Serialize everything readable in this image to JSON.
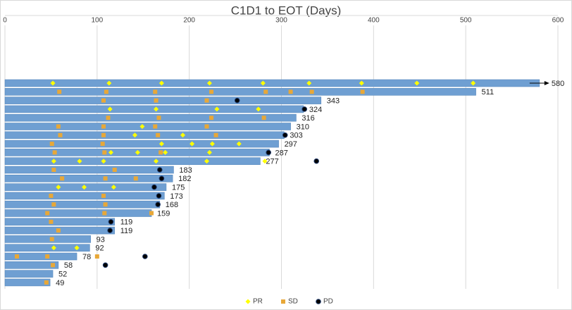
{
  "chart_data": {
    "type": "swimmer",
    "title": "C1D1 to EOT (Days)",
    "xlim": [
      0,
      600
    ],
    "xticks": [
      0,
      100,
      200,
      300,
      400,
      500,
      600
    ],
    "grid": true,
    "bar_color": "#6f9fd2",
    "values": [
      580,
      511,
      343,
      324,
      316,
      310,
      303,
      297,
      287,
      277,
      183,
      182,
      175,
      173,
      168,
      159,
      119,
      119,
      93,
      92,
      78,
      58,
      52,
      49
    ],
    "ongoing": [
      true,
      false,
      false,
      false,
      false,
      false,
      false,
      false,
      false,
      false,
      false,
      false,
      false,
      false,
      false,
      false,
      false,
      false,
      false,
      false,
      false,
      false,
      false,
      false
    ],
    "events": [
      {
        "name": "PR",
        "color": "#ffff00",
        "symbol": "diamond",
        "values": [
          [
            52,
            113,
            170,
            222,
            280,
            330,
            387,
            447,
            508
          ],
          [],
          [],
          [
            114,
            164,
            230,
            275
          ],
          [],
          [
            149
          ],
          [
            141,
            193
          ],
          [
            170,
            203,
            225,
            254
          ],
          [
            115,
            144,
            174,
            222
          ],
          [
            53,
            81,
            107,
            164,
            219,
            282
          ],
          [],
          [],
          [
            58,
            86,
            118
          ],
          [],
          [],
          [],
          [],
          [],
          [],
          [
            53,
            78
          ],
          [],
          [],
          [],
          []
        ]
      },
      {
        "name": "SD",
        "color": "#e8a838",
        "symbol": "square",
        "values": [
          [],
          [
            59,
            110,
            163,
            224,
            283,
            310,
            333,
            388
          ],
          [
            107,
            164,
            219
          ],
          [],
          [
            112,
            167,
            224,
            281
          ],
          [
            58,
            107,
            163,
            219
          ],
          [
            60,
            107,
            166,
            229
          ],
          [
            51,
            106
          ],
          [
            54,
            108,
            169
          ],
          [],
          [
            53,
            119
          ],
          [
            62,
            109,
            142
          ],
          [],
          [
            50,
            107
          ],
          [
            53,
            109
          ],
          [
            46,
            108,
            159
          ],
          [
            50
          ],
          [
            58
          ],
          [
            51
          ],
          [],
          [
            13,
            46,
            100
          ],
          [
            52
          ],
          [],
          [
            45
          ]
        ]
      },
      {
        "name": "PD",
        "color": "#000000",
        "symbol": "circle",
        "values": [
          [],
          [],
          [
            252
          ],
          [
            325
          ],
          [],
          [],
          [
            304
          ],
          [],
          [
            286
          ],
          [
            338
          ],
          [
            168
          ],
          [
            170
          ],
          [
            162
          ],
          [
            167
          ],
          [
            166
          ],
          [],
          [
            115
          ],
          [
            114
          ],
          [],
          [],
          [
            152
          ],
          [
            109
          ],
          [],
          []
        ]
      }
    ]
  }
}
